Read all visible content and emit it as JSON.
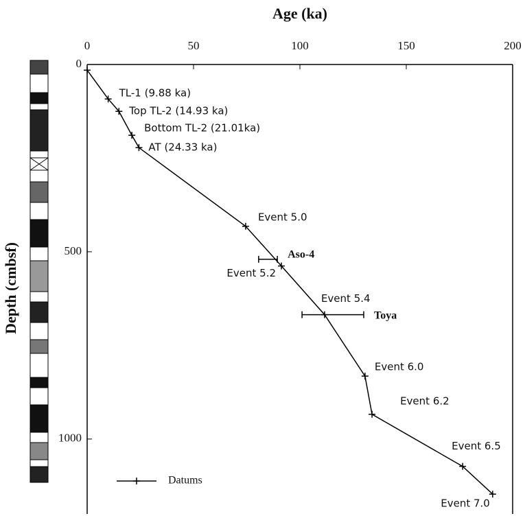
{
  "chart_data": {
    "type": "line",
    "title": "Age (ka)",
    "y_label": "Depth (cmbsf)",
    "xlim": [
      0,
      200
    ],
    "xticks": [
      0,
      50,
      100,
      150,
      200
    ],
    "ylim": [
      0,
      1200
    ],
    "yticks": [
      0,
      500,
      1000
    ],
    "y_inverted": true,
    "x_axis_position": "top",
    "color": "#000000",
    "series_name": "Datums",
    "ages": [
      0,
      9.88,
      14.93,
      21.01,
      24.33,
      74.5,
      91.3,
      111.6,
      130.6,
      133.9,
      176.5,
      190.6
    ],
    "depths": [
      15,
      92,
      125,
      189,
      222,
      432,
      538,
      668,
      832,
      934,
      1073,
      1147
    ],
    "labels": [
      null,
      "TL-1 (9.88 ka)",
      "Top TL-2 (14.93 ka)",
      "Bottom TL-2 (21.01ka)",
      "AT (24.33 ka)",
      "Event 5.0",
      "Event 5.2",
      "Event 5.4",
      "Event 6.0",
      "Event 6.2",
      "Event 6.5",
      "Event 7.0"
    ],
    "tephra": [
      {
        "name": "Aso-4",
        "depth": 520,
        "age_min": 80.6,
        "age_max": 89.4
      },
      {
        "name": "Toya",
        "depth": 668,
        "age_min": 101,
        "age_max": 130
      }
    ],
    "legend": "lower left"
  }
}
